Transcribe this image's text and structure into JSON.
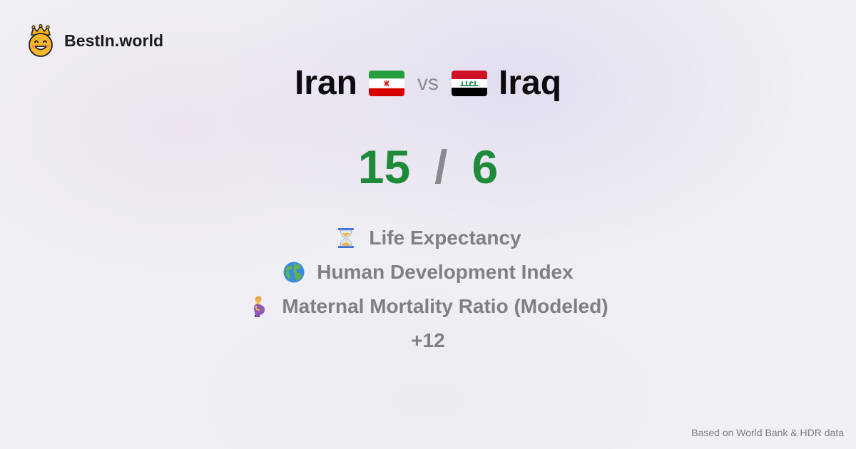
{
  "brand": {
    "name": "BestIn.world",
    "logo_icon": "crowned-smiley-icon"
  },
  "comparison": {
    "left": {
      "name": "Iran",
      "flag_icon": "iran-flag-icon",
      "score": "15"
    },
    "vs_label": "vs",
    "right": {
      "name": "Iraq",
      "flag_icon": "iraq-flag-icon",
      "score": "6"
    },
    "score_separator": "/"
  },
  "metrics": [
    {
      "icon": "hourglass-icon",
      "label": "Life Expectancy"
    },
    {
      "icon": "globe-icon",
      "label": "Human Development Index"
    },
    {
      "icon": "pregnant-woman-icon",
      "label": "Maternal Mortality Ratio (Modeled)"
    }
  ],
  "more_label": "+12",
  "footer": {
    "source": "Based on World Bank & HDR data"
  },
  "colors": {
    "score": "#1e8a3a",
    "muted_text": "#7f7f85",
    "heading": "#0c0c10",
    "brand_accent": "#f3b21b"
  }
}
